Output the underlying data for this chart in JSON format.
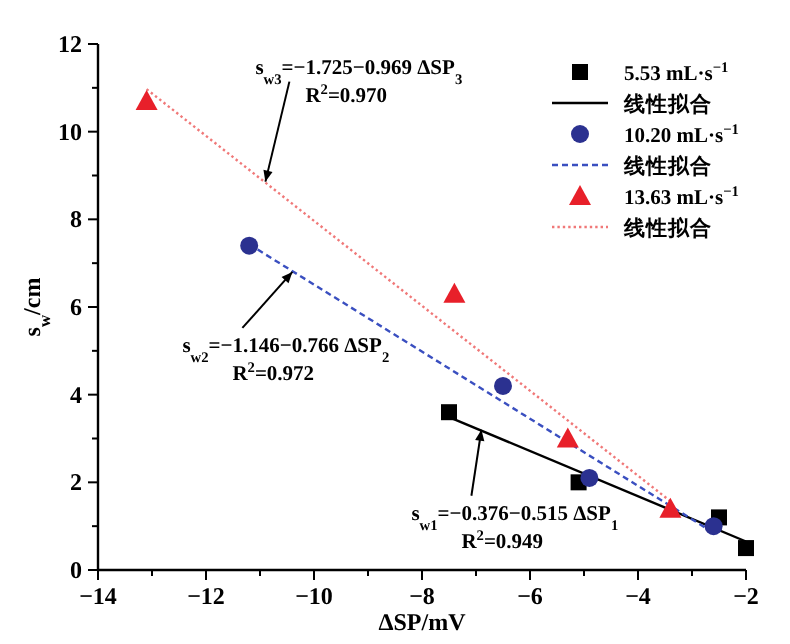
{
  "chart_data": {
    "type": "scatter",
    "xlabel": "ΔSP/mV",
    "ylabel": "s$_{w}$/cm",
    "xlim": [
      -14,
      -2
    ],
    "ylim": [
      0,
      12
    ],
    "xticks": [
      {
        "value": -14,
        "label": "−14"
      },
      {
        "value": -13,
        "label": null
      },
      {
        "value": -12,
        "label": "−12"
      },
      {
        "value": -11,
        "label": null
      },
      {
        "value": -10,
        "label": "−10"
      },
      {
        "value": -9,
        "label": null
      },
      {
        "value": -8,
        "label": "−8"
      },
      {
        "value": -7,
        "label": null
      },
      {
        "value": -6,
        "label": "−6"
      },
      {
        "value": -5,
        "label": null
      },
      {
        "value": -4,
        "label": "−4"
      },
      {
        "value": -3,
        "label": null
      },
      {
        "value": -2,
        "label": "−2"
      }
    ],
    "yticks": [
      0,
      {
        "value": 1,
        "label": null
      },
      2,
      {
        "value": 3,
        "label": null
      },
      4,
      {
        "value": 5,
        "label": null
      },
      6,
      {
        "value": 7,
        "label": null
      },
      8,
      {
        "value": 9,
        "label": null
      },
      10,
      {
        "value": 11,
        "label": null
      },
      12
    ],
    "grid": false,
    "legend": "top right",
    "series": [
      {
        "name": "5.53 mL·s$^{−1}$",
        "type": "scatter",
        "marker": "square",
        "color": "#000000",
        "x": [
          -7.5,
          -5.1,
          -2.5,
          -2.0
        ],
        "values": [
          3.6,
          2.0,
          1.2,
          0.5
        ]
      },
      {
        "name": "线性拟合",
        "type": "line",
        "line_style": "solid",
        "color": "#000000",
        "x": [
          -7.5,
          -2.0
        ],
        "values": [
          3.49,
          0.65
        ]
      },
      {
        "name": "10.20 mL·s$^{−1}$",
        "type": "scatter",
        "marker": "circle",
        "color": "#2b3190",
        "x": [
          -11.2,
          -6.5,
          -4.9,
          -2.6
        ],
        "values": [
          7.4,
          4.2,
          2.1,
          1.0
        ]
      },
      {
        "name": "线性拟合",
        "type": "line",
        "line_style": "dashed",
        "color": "#3a4fc0",
        "x": [
          -11.2,
          -2.6
        ],
        "values": [
          7.43,
          0.85
        ]
      },
      {
        "name": "13.63 mL·s$^{−1}$",
        "type": "scatter",
        "marker": "triangle",
        "color": "#e8202a",
        "x": [
          -13.1,
          -7.4,
          -5.3,
          -3.4
        ],
        "values": [
          10.7,
          6.3,
          3.0,
          1.4
        ]
      },
      {
        "name": "线性拟合",
        "type": "line",
        "line_style": "dotted",
        "color": "#f07878",
        "x": [
          -13.1,
          -3.4
        ],
        "values": [
          10.97,
          1.57
        ]
      }
    ],
    "annotations": [
      {
        "text": "s$_{w3}$=−1.725−0.969 ΔSP$_{3}$",
        "x": -10.9,
        "y": 8.86
      },
      "R$^{2}$=0.970",
      {
        "text": "s$_{w2}$=−1.146−0.766 ΔSP$_{2}$",
        "x": -10.4,
        "y": 6.8
      },
      "R$^{2}$=0.972",
      {
        "text": "s$_{w1}$=−0.376−0.515 ΔSP$_{1}$",
        "x": -6.9,
        "y": 3.2
      },
      "R$^{2}$=0.949"
    ]
  }
}
